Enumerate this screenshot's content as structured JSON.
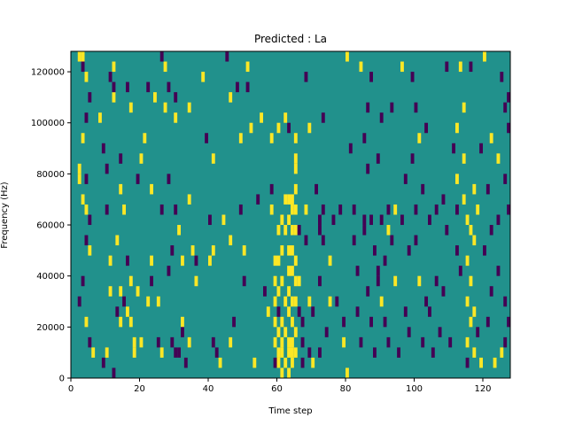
{
  "chart_data": {
    "type": "heatmap",
    "title": "Predicted : La",
    "xlabel": "Time step",
    "ylabel": "Frequency (Hz)",
    "xlim": [
      0,
      128
    ],
    "ylim": [
      0,
      128000
    ],
    "x_ticks": [
      0,
      20,
      40,
      60,
      80,
      100,
      120
    ],
    "y_ticks": [
      0,
      20000,
      40000,
      60000,
      80000,
      100000,
      120000
    ],
    "value_levels": {
      "low": 0,
      "mid": 1,
      "high": 2
    },
    "colors": {
      "low": "#440154",
      "mid": "#21918c",
      "high": "#fde725",
      "axis": "#000000"
    },
    "grid": false,
    "row_bin_hz": 4000,
    "cells": [
      [
        2,
        124000,
        2
      ],
      [
        3,
        124000,
        2
      ],
      [
        4,
        100000,
        0
      ],
      [
        3,
        92000,
        2
      ],
      [
        2,
        80000,
        2
      ],
      [
        4,
        76000,
        0
      ],
      [
        3,
        68000,
        2
      ],
      [
        4,
        64000,
        2
      ],
      [
        5,
        60000,
        0
      ],
      [
        3,
        120000,
        0
      ],
      [
        4,
        116000,
        2
      ],
      [
        5,
        108000,
        0
      ],
      [
        2,
        76000,
        2
      ],
      [
        4,
        52000,
        0
      ],
      [
        5,
        48000,
        2
      ],
      [
        3,
        36000,
        0
      ],
      [
        2,
        28000,
        0
      ],
      [
        4,
        20000,
        2
      ],
      [
        5,
        12000,
        0
      ],
      [
        6,
        8000,
        2
      ],
      [
        8,
        100000,
        2
      ],
      [
        9,
        88000,
        0
      ],
      [
        10,
        80000,
        0
      ],
      [
        12,
        108000,
        2
      ],
      [
        12,
        112000,
        0
      ],
      [
        14,
        84000,
        0
      ],
      [
        14,
        72000,
        2
      ],
      [
        13,
        52000,
        2
      ],
      [
        15,
        64000,
        2
      ],
      [
        16,
        112000,
        0
      ],
      [
        17,
        104000,
        2
      ],
      [
        16,
        44000,
        0
      ],
      [
        17,
        36000,
        2
      ],
      [
        16,
        24000,
        2
      ],
      [
        17,
        20000,
        2
      ],
      [
        11,
        116000,
        0
      ],
      [
        12,
        120000,
        2
      ],
      [
        10,
        64000,
        0
      ],
      [
        11,
        44000,
        2
      ],
      [
        11,
        32000,
        2
      ],
      [
        10,
        8000,
        2
      ],
      [
        9,
        4000,
        0
      ],
      [
        14,
        32000,
        2
      ],
      [
        15,
        28000,
        0
      ],
      [
        13,
        24000,
        0
      ],
      [
        14,
        20000,
        2
      ],
      [
        12,
        0,
        0
      ],
      [
        18,
        12000,
        2
      ],
      [
        18,
        8000,
        2
      ],
      [
        19,
        76000,
        0
      ],
      [
        19,
        32000,
        2
      ],
      [
        20,
        84000,
        2
      ],
      [
        20,
        12000,
        2
      ],
      [
        22,
        112000,
        0
      ],
      [
        21,
        92000,
        2
      ],
      [
        23,
        72000,
        2
      ],
      [
        23,
        44000,
        2
      ],
      [
        23,
        36000,
        0
      ],
      [
        22,
        28000,
        2
      ],
      [
        24,
        108000,
        2
      ],
      [
        25,
        28000,
        2
      ],
      [
        26,
        64000,
        0
      ],
      [
        26,
        124000,
        0
      ],
      [
        27,
        104000,
        2
      ],
      [
        25,
        12000,
        0
      ],
      [
        26,
        8000,
        2
      ],
      [
        28,
        76000,
        0
      ],
      [
        28,
        40000,
        0
      ],
      [
        29,
        12000,
        0
      ],
      [
        30,
        64000,
        0
      ],
      [
        30,
        8000,
        0
      ],
      [
        31,
        8000,
        0
      ],
      [
        27,
        120000,
        2
      ],
      [
        28,
        112000,
        0
      ],
      [
        29,
        48000,
        0
      ],
      [
        30,
        108000,
        0
      ],
      [
        30,
        100000,
        2
      ],
      [
        31,
        56000,
        2
      ],
      [
        32,
        44000,
        2
      ],
      [
        32,
        20000,
        2
      ],
      [
        32,
        16000,
        0
      ],
      [
        33,
        4000,
        0
      ],
      [
        34,
        104000,
        2
      ],
      [
        34,
        68000,
        2
      ],
      [
        34,
        12000,
        2
      ],
      [
        35,
        48000,
        2
      ],
      [
        36,
        36000,
        2
      ],
      [
        36,
        44000,
        0
      ],
      [
        38,
        116000,
        2
      ],
      [
        39,
        92000,
        0
      ],
      [
        40,
        44000,
        2
      ],
      [
        40,
        60000,
        0
      ],
      [
        41,
        48000,
        2
      ],
      [
        41,
        84000,
        2
      ],
      [
        41,
        12000,
        0
      ],
      [
        42,
        8000,
        0
      ],
      [
        43,
        4000,
        2
      ],
      [
        44,
        60000,
        2
      ],
      [
        45,
        124000,
        0
      ],
      [
        46,
        108000,
        2
      ],
      [
        46,
        52000,
        2
      ],
      [
        46,
        12000,
        2
      ],
      [
        47,
        20000,
        0
      ],
      [
        48,
        112000,
        0
      ],
      [
        49,
        64000,
        0
      ],
      [
        49,
        92000,
        2
      ],
      [
        50,
        48000,
        2
      ],
      [
        50,
        36000,
        0
      ],
      [
        51,
        120000,
        2
      ],
      [
        51,
        112000,
        0
      ],
      [
        52,
        96000,
        2
      ],
      [
        53,
        4000,
        2
      ],
      [
        54,
        68000,
        0
      ],
      [
        55,
        100000,
        2
      ],
      [
        56,
        32000,
        0
      ],
      [
        57,
        24000,
        2
      ],
      [
        58,
        92000,
        2
      ],
      [
        58,
        72000,
        0
      ],
      [
        58,
        64000,
        2
      ],
      [
        59,
        44000,
        2
      ],
      [
        59,
        36000,
        2
      ],
      [
        59,
        28000,
        2
      ],
      [
        59,
        20000,
        2
      ],
      [
        59,
        12000,
        2
      ],
      [
        59,
        4000,
        0
      ],
      [
        60,
        96000,
        2
      ],
      [
        60,
        56000,
        2
      ],
      [
        60,
        44000,
        2
      ],
      [
        60,
        32000,
        2
      ],
      [
        60,
        24000,
        0
      ],
      [
        60,
        16000,
        2
      ],
      [
        60,
        8000,
        2
      ],
      [
        60,
        4000,
        2
      ],
      [
        61,
        60000,
        2
      ],
      [
        61,
        48000,
        2
      ],
      [
        61,
        36000,
        2
      ],
      [
        61,
        20000,
        2
      ],
      [
        61,
        12000,
        2
      ],
      [
        61,
        8000,
        2
      ],
      [
        61,
        0,
        2
      ],
      [
        62,
        100000,
        2
      ],
      [
        62,
        68000,
        2
      ],
      [
        62,
        56000,
        2
      ],
      [
        62,
        28000,
        2
      ],
      [
        62,
        16000,
        2
      ],
      [
        62,
        4000,
        2
      ],
      [
        63,
        96000,
        0
      ],
      [
        63,
        68000,
        2
      ],
      [
        63,
        60000,
        2
      ],
      [
        63,
        48000,
        2
      ],
      [
        63,
        40000,
        2
      ],
      [
        63,
        32000,
        2
      ],
      [
        63,
        24000,
        2
      ],
      [
        63,
        12000,
        2
      ],
      [
        63,
        8000,
        2
      ],
      [
        63,
        0,
        2
      ],
      [
        64,
        68000,
        2
      ],
      [
        64,
        64000,
        2
      ],
      [
        64,
        56000,
        2
      ],
      [
        64,
        48000,
        2
      ],
      [
        64,
        40000,
        2
      ],
      [
        64,
        28000,
        2
      ],
      [
        64,
        20000,
        2
      ],
      [
        64,
        12000,
        2
      ],
      [
        64,
        8000,
        2
      ],
      [
        64,
        4000,
        2
      ],
      [
        65,
        92000,
        2
      ],
      [
        65,
        84000,
        2
      ],
      [
        65,
        80000,
        2
      ],
      [
        65,
        72000,
        2
      ],
      [
        65,
        64000,
        2
      ],
      [
        65,
        56000,
        2
      ],
      [
        65,
        44000,
        2
      ],
      [
        65,
        36000,
        2
      ],
      [
        65,
        28000,
        2
      ],
      [
        65,
        16000,
        2
      ],
      [
        65,
        8000,
        2
      ],
      [
        66,
        56000,
        0
      ],
      [
        66,
        36000,
        2
      ],
      [
        66,
        24000,
        0
      ],
      [
        67,
        20000,
        0
      ],
      [
        67,
        12000,
        0
      ],
      [
        67,
        4000,
        0
      ],
      [
        68,
        52000,
        0
      ],
      [
        68,
        64000,
        2
      ],
      [
        68,
        116000,
        0
      ],
      [
        69,
        96000,
        2
      ],
      [
        69,
        28000,
        2
      ],
      [
        69,
        8000,
        0
      ],
      [
        70,
        24000,
        0
      ],
      [
        70,
        4000,
        2
      ],
      [
        71,
        72000,
        0
      ],
      [
        72,
        60000,
        0
      ],
      [
        72,
        56000,
        0
      ],
      [
        72,
        36000,
        0
      ],
      [
        72,
        8000,
        0
      ],
      [
        73,
        64000,
        0
      ],
      [
        73,
        52000,
        0
      ],
      [
        73,
        100000,
        0
      ],
      [
        74,
        16000,
        0
      ],
      [
        75,
        44000,
        2
      ],
      [
        75,
        28000,
        2
      ],
      [
        76,
        60000,
        0
      ],
      [
        77,
        28000,
        0
      ],
      [
        78,
        64000,
        0
      ],
      [
        79,
        20000,
        0
      ],
      [
        79,
        12000,
        2
      ],
      [
        80,
        124000,
        2
      ],
      [
        80,
        0,
        2
      ],
      [
        81,
        88000,
        0
      ],
      [
        82,
        64000,
        0
      ],
      [
        82,
        52000,
        0
      ],
      [
        83,
        40000,
        0
      ],
      [
        83,
        24000,
        0
      ],
      [
        84,
        12000,
        0
      ],
      [
        84,
        120000,
        2
      ],
      [
        85,
        60000,
        0
      ],
      [
        85,
        56000,
        0
      ],
      [
        85,
        92000,
        0
      ],
      [
        86,
        80000,
        0
      ],
      [
        86,
        32000,
        0
      ],
      [
        86,
        104000,
        0
      ],
      [
        87,
        116000,
        0
      ],
      [
        87,
        60000,
        0
      ],
      [
        87,
        20000,
        0
      ],
      [
        88,
        48000,
        0
      ],
      [
        88,
        8000,
        0
      ],
      [
        89,
        84000,
        0
      ],
      [
        89,
        36000,
        0
      ],
      [
        89,
        40000,
        0
      ],
      [
        90,
        60000,
        0
      ],
      [
        90,
        28000,
        2
      ],
      [
        90,
        100000,
        0
      ],
      [
        91,
        44000,
        0
      ],
      [
        91,
        20000,
        0
      ],
      [
        92,
        64000,
        0
      ],
      [
        92,
        56000,
        2
      ],
      [
        92,
        12000,
        0
      ],
      [
        93,
        104000,
        0
      ],
      [
        93,
        52000,
        0
      ],
      [
        94,
        64000,
        2
      ],
      [
        94,
        36000,
        2
      ],
      [
        95,
        8000,
        0
      ],
      [
        96,
        60000,
        0
      ],
      [
        96,
        120000,
        2
      ],
      [
        97,
        76000,
        0
      ],
      [
        97,
        24000,
        0
      ],
      [
        98,
        48000,
        0
      ],
      [
        98,
        16000,
        0
      ],
      [
        99,
        84000,
        0
      ],
      [
        99,
        116000,
        0
      ],
      [
        100,
        64000,
        0
      ],
      [
        100,
        52000,
        0
      ],
      [
        100,
        104000,
        0
      ],
      [
        101,
        92000,
        2
      ],
      [
        101,
        36000,
        2
      ],
      [
        102,
        72000,
        0
      ],
      [
        102,
        12000,
        0
      ],
      [
        103,
        28000,
        0
      ],
      [
        103,
        96000,
        0
      ],
      [
        104,
        60000,
        0
      ],
      [
        104,
        24000,
        0
      ],
      [
        105,
        8000,
        0
      ],
      [
        106,
        36000,
        0
      ],
      [
        106,
        64000,
        0
      ],
      [
        107,
        16000,
        0
      ],
      [
        108,
        32000,
        0
      ],
      [
        108,
        68000,
        0
      ],
      [
        109,
        56000,
        0
      ],
      [
        109,
        120000,
        0
      ],
      [
        110,
        12000,
        0
      ],
      [
        111,
        88000,
        0
      ],
      [
        112,
        48000,
        0
      ],
      [
        112,
        64000,
        0
      ],
      [
        112,
        96000,
        2
      ],
      [
        112,
        76000,
        2
      ],
      [
        113,
        40000,
        0
      ],
      [
        113,
        120000,
        2
      ],
      [
        114,
        68000,
        2
      ],
      [
        114,
        84000,
        2
      ],
      [
        114,
        104000,
        2
      ],
      [
        115,
        60000,
        2
      ],
      [
        115,
        44000,
        2
      ],
      [
        115,
        28000,
        2
      ],
      [
        115,
        12000,
        2
      ],
      [
        115,
        4000,
        0
      ],
      [
        116,
        56000,
        2
      ],
      [
        116,
        36000,
        2
      ],
      [
        116,
        20000,
        2
      ],
      [
        116,
        120000,
        0
      ],
      [
        117,
        72000,
        2
      ],
      [
        117,
        52000,
        2
      ],
      [
        117,
        24000,
        2
      ],
      [
        117,
        8000,
        2
      ],
      [
        118,
        16000,
        0
      ],
      [
        118,
        64000,
        2
      ],
      [
        119,
        88000,
        0
      ],
      [
        119,
        4000,
        2
      ],
      [
        120,
        124000,
        2
      ],
      [
        120,
        48000,
        0
      ],
      [
        121,
        20000,
        0
      ],
      [
        121,
        72000,
        0
      ],
      [
        122,
        56000,
        0
      ],
      [
        122,
        32000,
        0
      ],
      [
        122,
        92000,
        2
      ],
      [
        123,
        4000,
        2
      ],
      [
        124,
        40000,
        0
      ],
      [
        124,
        84000,
        2
      ],
      [
        124,
        60000,
        0
      ],
      [
        125,
        116000,
        0
      ],
      [
        125,
        8000,
        2
      ],
      [
        126,
        28000,
        0
      ],
      [
        126,
        76000,
        0
      ],
      [
        126,
        104000,
        0
      ],
      [
        126,
        12000,
        0
      ],
      [
        127,
        108000,
        0
      ],
      [
        127,
        96000,
        0
      ],
      [
        127,
        64000,
        0
      ],
      [
        127,
        20000,
        0
      ]
    ]
  }
}
